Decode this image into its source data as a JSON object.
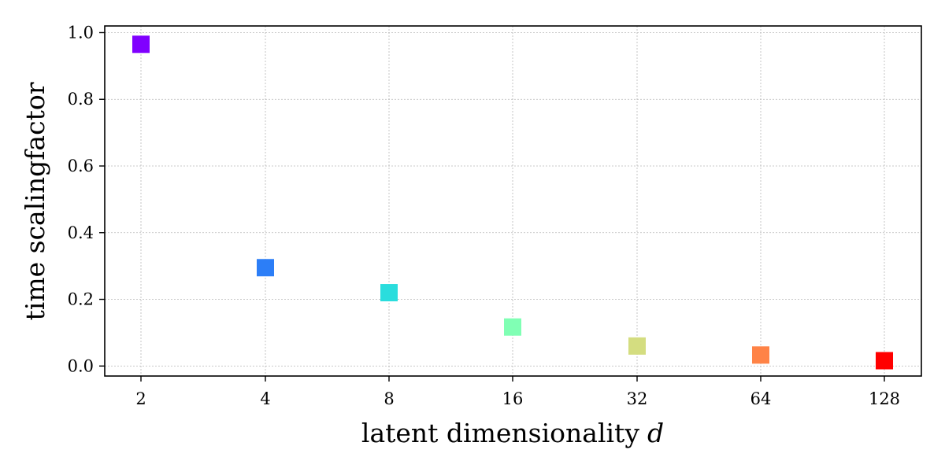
{
  "chart_data": {
    "type": "scatter",
    "categories": [
      "2",
      "4",
      "8",
      "16",
      "32",
      "64",
      "128"
    ],
    "values": [
      0.965,
      0.295,
      0.22,
      0.117,
      0.06,
      0.033,
      0.016
    ],
    "marker": "square",
    "colors": [
      "#8000ff",
      "#2c7ef7",
      "#2adddd",
      "#80ffb4",
      "#d4dd80",
      "#ff8346",
      "#ff0000"
    ],
    "xlabel": "latent dimensionality",
    "xlabel_var": "d",
    "ylabel": "time scalingfactor",
    "ylim": [
      -0.03,
      1.02
    ],
    "yticks": [
      0.0,
      0.2,
      0.4,
      0.6,
      0.8,
      1.0
    ],
    "ytick_labels": [
      "0.0",
      "0.2",
      "0.4",
      "0.6",
      "0.8",
      "1.0"
    ],
    "grid": true,
    "legend": false
  }
}
